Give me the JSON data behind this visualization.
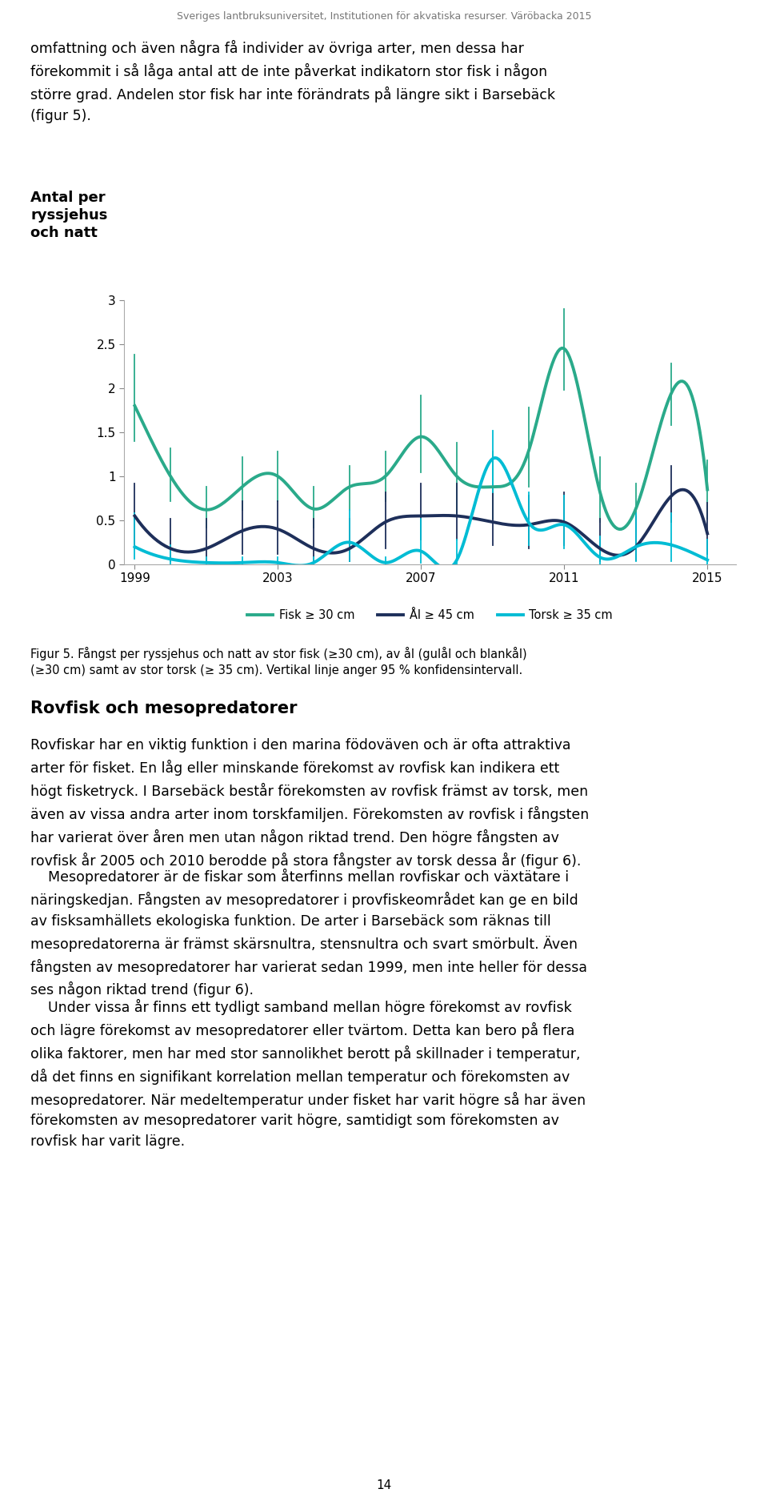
{
  "figtext_top": "Sveriges lantbruksuniversitet, Institutionen för akvatiska resurser. Väröbacka 2015",
  "ylim": [
    0,
    3.0
  ],
  "yticks": [
    0,
    0.5,
    1.0,
    1.5,
    2.0,
    2.5,
    3.0
  ],
  "years": [
    1999,
    2000,
    2001,
    2002,
    2003,
    2004,
    2005,
    2006,
    2007,
    2008,
    2009,
    2010,
    2011,
    2012,
    2013,
    2014,
    2015
  ],
  "xtick_years": [
    1999,
    2003,
    2007,
    2011,
    2015
  ],
  "fisk_values": [
    1.8,
    1.0,
    0.62,
    0.88,
    1.0,
    0.63,
    0.88,
    1.0,
    1.45,
    1.0,
    0.88,
    1.28,
    2.45,
    0.82,
    0.63,
    1.95,
    0.85
  ],
  "fisk_ci_low": [
    1.4,
    0.72,
    0.42,
    0.62,
    0.72,
    0.42,
    0.62,
    0.72,
    1.05,
    0.58,
    0.52,
    0.88,
    1.98,
    0.48,
    0.38,
    1.58,
    0.52
  ],
  "fisk_ci_high": [
    2.38,
    1.32,
    0.88,
    1.22,
    1.28,
    0.88,
    1.12,
    1.28,
    1.92,
    1.38,
    1.28,
    1.78,
    2.9,
    1.22,
    0.92,
    2.28,
    1.18
  ],
  "aal_values": [
    0.55,
    0.18,
    0.18,
    0.38,
    0.4,
    0.18,
    0.18,
    0.48,
    0.55,
    0.55,
    0.48,
    0.45,
    0.48,
    0.18,
    0.2,
    0.78,
    0.35
  ],
  "aal_ci_low": [
    0.18,
    0.04,
    0.04,
    0.12,
    0.12,
    0.04,
    0.04,
    0.18,
    0.28,
    0.28,
    0.22,
    0.18,
    0.22,
    0.04,
    0.05,
    0.48,
    0.12
  ],
  "aal_ci_high": [
    0.92,
    0.52,
    0.52,
    0.72,
    0.72,
    0.52,
    0.52,
    0.82,
    0.92,
    0.92,
    0.82,
    0.78,
    0.82,
    0.52,
    0.55,
    1.12,
    0.7
  ],
  "torsk_values": [
    0.2,
    0.06,
    0.02,
    0.02,
    0.02,
    0.02,
    0.25,
    0.02,
    0.15,
    0.05,
    1.2,
    0.48,
    0.45,
    0.08,
    0.2,
    0.22,
    0.05
  ],
  "torsk_ci_low": [
    0.06,
    0.0,
    0.0,
    0.0,
    0.0,
    0.0,
    0.04,
    0.0,
    0.02,
    0.0,
    0.82,
    0.22,
    0.18,
    0.0,
    0.04,
    0.04,
    0.0
  ],
  "torsk_ci_high": [
    0.58,
    0.22,
    0.08,
    0.08,
    0.08,
    0.08,
    0.62,
    0.08,
    0.52,
    0.28,
    1.52,
    0.82,
    0.78,
    0.32,
    0.58,
    0.58,
    0.28
  ],
  "fisk_color": "#2aaa8a",
  "aal_color": "#1e2f5a",
  "torsk_color": "#00bcd4",
  "fisk_label": "Fisk ≥ 30 cm",
  "aal_label": "Ål ≥ 45 cm",
  "torsk_label": "Torsk ≥ 35 cm",
  "line_width": 2.8,
  "ci_linewidth": 1.3
}
